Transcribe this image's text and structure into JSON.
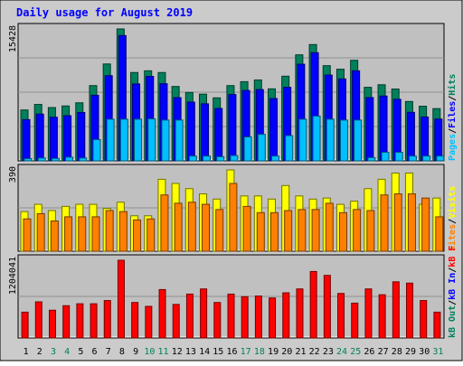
{
  "title": "Daily usage for August 2019",
  "colors": {
    "background": "#cbcbcb",
    "panel": "#c0c0c0",
    "hits": "#00805c",
    "files": "#0000ff",
    "pages": "#00c0ff",
    "visits": "#ffff00",
    "sites": "#ff8000",
    "kbin": "#0000ff",
    "kbout": "#00805c",
    "kbf": "#ff0000",
    "weekend_label": "#00805c",
    "weekday_label": "#000000",
    "title": "#0000ff"
  },
  "chart_data": [
    {
      "type": "bar",
      "panel": "hits-files-pages",
      "ymax_label": "15428",
      "ymax": 15428,
      "legend": [
        {
          "text": "Hits",
          "color": "#00805c"
        },
        {
          "text": "/",
          "color": "#000000"
        },
        {
          "text": "Files",
          "color": "#0000ff"
        },
        {
          "text": "/",
          "color": "#000000"
        },
        {
          "text": "Pages",
          "color": "#00c0ff"
        }
      ],
      "categories": [
        "1",
        "2",
        "3",
        "4",
        "5",
        "6",
        "7",
        "8",
        "9",
        "10",
        "11",
        "12",
        "13",
        "14",
        "15",
        "16",
        "17",
        "18",
        "19",
        "20",
        "21",
        "22",
        "23",
        "24",
        "25",
        "26",
        "27",
        "28",
        "29",
        "30",
        "31"
      ],
      "series": [
        {
          "name": "Hits",
          "color": "#00805c",
          "values": [
            5950,
            6600,
            6230,
            6420,
            6790,
            8800,
            11330,
            15428,
            10330,
            10530,
            10330,
            8700,
            8000,
            7800,
            7370,
            8800,
            9260,
            9460,
            8420,
            9900,
            12400,
            13600,
            11130,
            10720,
            11760,
            8600,
            8900,
            8400,
            6940,
            6390,
            6110
          ]
        },
        {
          "name": "Files",
          "color": "#0000ff",
          "values": [
            4820,
            5470,
            5100,
            5280,
            5660,
            7670,
            9960,
            14650,
            8990,
            9880,
            9020,
            7390,
            6870,
            6670,
            6130,
            7760,
            8230,
            8330,
            7290,
            8600,
            11300,
            12650,
            10030,
            9580,
            10530,
            7400,
            7580,
            7200,
            5680,
            5130,
            4890
          ]
        },
        {
          "name": "Pages",
          "color": "#00c0ff",
          "values": [
            260,
            330,
            280,
            430,
            330,
            2490,
            4870,
            4870,
            4870,
            4910,
            4770,
            4770,
            560,
            560,
            480,
            620,
            2800,
            3100,
            560,
            2950,
            4870,
            5230,
            4870,
            4770,
            4770,
            380,
            1000,
            1000,
            560,
            560,
            560
          ]
        }
      ]
    },
    {
      "type": "bar",
      "panel": "visits-sites",
      "ymax_label": "390",
      "ymax": 390,
      "legend": [
        {
          "text": "Visits",
          "color": "#ffff00"
        },
        {
          "text": "/",
          "color": "#000000"
        },
        {
          "text": "Sites",
          "color": "#ff8000"
        }
      ],
      "categories": [
        "1",
        "2",
        "3",
        "4",
        "5",
        "6",
        "7",
        "8",
        "9",
        "10",
        "11",
        "12",
        "13",
        "14",
        "15",
        "16",
        "17",
        "18",
        "19",
        "20",
        "21",
        "22",
        "23",
        "24",
        "25",
        "26",
        "27",
        "28",
        "29",
        "30",
        "31"
      ],
      "series": [
        {
          "name": "Visits",
          "color": "#ffff00",
          "values": [
            190,
            225,
            195,
            215,
            225,
            225,
            205,
            235,
            170,
            170,
            345,
            325,
            300,
            275,
            250,
            390,
            265,
            265,
            250,
            315,
            265,
            250,
            255,
            225,
            240,
            300,
            345,
            375,
            375,
            225,
            255
          ]
        },
        {
          "name": "Sites",
          "color": "#ff8000",
          "values": [
            155,
            180,
            145,
            165,
            165,
            165,
            195,
            190,
            150,
            155,
            270,
            230,
            235,
            225,
            200,
            325,
            215,
            185,
            185,
            195,
            200,
            200,
            230,
            185,
            200,
            195,
            270,
            275,
            275,
            255,
            165
          ]
        }
      ]
    },
    {
      "type": "bar",
      "panel": "kbytes",
      "ymax_label": "1204041",
      "ymax": 1204041,
      "legend": [
        {
          "text": "kB F",
          "color": "#ff0000"
        },
        {
          "text": "/",
          "color": "#000000"
        },
        {
          "text": "kB In",
          "color": "#0000ff"
        },
        {
          "text": "/",
          "color": "#000000"
        },
        {
          "text": "kB Out",
          "color": "#00805c"
        }
      ],
      "categories": [
        "1",
        "2",
        "3",
        "4",
        "5",
        "6",
        "7",
        "8",
        "9",
        "10",
        "11",
        "12",
        "13",
        "14",
        "15",
        "16",
        "17",
        "18",
        "19",
        "20",
        "21",
        "22",
        "23",
        "24",
        "25",
        "26",
        "27",
        "28",
        "29",
        "30",
        "31"
      ],
      "series": [
        {
          "name": "kB F",
          "color": "#ff0000",
          "values": [
            400000,
            560000,
            430000,
            500000,
            530000,
            530000,
            580000,
            1204041,
            550000,
            490000,
            750000,
            520000,
            680000,
            760000,
            550000,
            680000,
            640000,
            650000,
            620000,
            700000,
            760000,
            1030000,
            970000,
            690000,
            540000,
            760000,
            670000,
            870000,
            850000,
            580000,
            400000
          ]
        }
      ]
    }
  ],
  "day_labels": [
    {
      "text": "1",
      "weekend": false
    },
    {
      "text": "2",
      "weekend": false
    },
    {
      "text": "3",
      "weekend": true
    },
    {
      "text": "4",
      "weekend": true
    },
    {
      "text": "5",
      "weekend": false
    },
    {
      "text": "6",
      "weekend": false
    },
    {
      "text": "7",
      "weekend": false
    },
    {
      "text": "8",
      "weekend": false
    },
    {
      "text": "9",
      "weekend": false
    },
    {
      "text": "10",
      "weekend": true
    },
    {
      "text": "11",
      "weekend": true
    },
    {
      "text": "12",
      "weekend": false
    },
    {
      "text": "13",
      "weekend": false
    },
    {
      "text": "14",
      "weekend": false
    },
    {
      "text": "15",
      "weekend": false
    },
    {
      "text": "16",
      "weekend": false
    },
    {
      "text": "17",
      "weekend": true
    },
    {
      "text": "18",
      "weekend": true
    },
    {
      "text": "19",
      "weekend": false
    },
    {
      "text": "20",
      "weekend": false
    },
    {
      "text": "21",
      "weekend": false
    },
    {
      "text": "22",
      "weekend": false
    },
    {
      "text": "23",
      "weekend": false
    },
    {
      "text": "24",
      "weekend": true
    },
    {
      "text": "25",
      "weekend": true
    },
    {
      "text": "26",
      "weekend": false
    },
    {
      "text": "27",
      "weekend": false
    },
    {
      "text": "28",
      "weekend": false
    },
    {
      "text": "29",
      "weekend": false
    },
    {
      "text": "30",
      "weekend": false
    },
    {
      "text": "31",
      "weekend": true
    }
  ]
}
